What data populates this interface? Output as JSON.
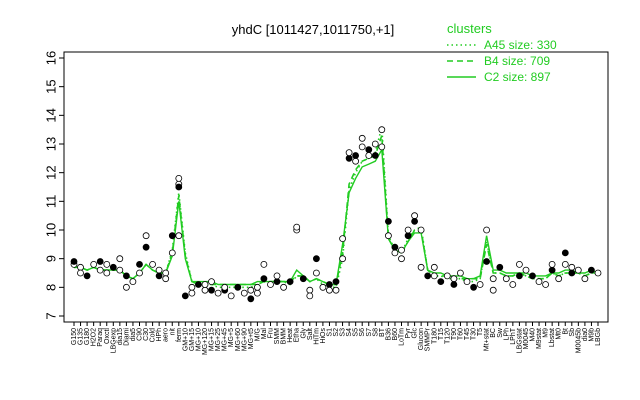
{
  "chart_data": {
    "type": "line",
    "title": "yhdC [1011427,1011750,+1]",
    "xlabel": "",
    "ylabel": "",
    "ylim": [
      7,
      16
    ],
    "yticks": [
      7,
      8,
      9,
      10,
      11,
      12,
      13,
      14,
      15,
      16
    ],
    "categories": [
      "G150",
      "G135",
      "G180",
      "H2O2",
      "Paraq",
      "Oxctl",
      "LBGexp",
      "dia15",
      "Diami",
      "dia5",
      "C90",
      "C30",
      "Cold",
      "HPh",
      "aero",
      "nit",
      "ferm",
      "GM+10",
      "GM+15",
      "MG+10",
      "MG+120",
      "MG+15",
      "MG+25",
      "MG+45",
      "MG+5",
      "MG+60",
      "MG+90",
      "MG+t5",
      "MG",
      "Mal",
      "Fru",
      "SMM",
      "BMM",
      "Heat",
      "Etha",
      "Gly",
      "Salt",
      "HiTm",
      "HiOs",
      "S1",
      "S2",
      "S3",
      "S4",
      "S5",
      "S6",
      "S7",
      "S8",
      "BT",
      "B36",
      "B60",
      "LoTm",
      "Pyr",
      "Glc",
      "Glucon",
      "SMMPr",
      "T180",
      "T15",
      "T120",
      "T90",
      "T60",
      "T45",
      "T30",
      "T5",
      "Mt+stat",
      "BC",
      "Sw",
      "LPh",
      "LPhT",
      "LBGstat",
      "M0045",
      "M40",
      "M9stat",
      "M9",
      "Lbstat",
      "Mt0",
      "Bt",
      "Sb",
      "M0045b",
      "dia0",
      "M9b",
      "LBGb"
    ],
    "shown_tick_labels": [
      "G150",
      "G135",
      "G180",
      "H2O2",
      "Paraq",
      "Oxctl",
      "LBGexp",
      "dia15",
      "Diami",
      "dia5",
      "C90",
      "C30",
      "Cold",
      "HPh",
      "aero",
      "nit",
      "ferm",
      "GM+10",
      "GM+15",
      "MG+10",
      "MG+120",
      "MG+15",
      "MG+25",
      "MG+45",
      "MG+5",
      "MG+60",
      "MG+90",
      "MG+t5",
      "M/G",
      "Mal",
      "Fru",
      "SMM",
      "BMM",
      "Heat",
      "Etha",
      "Gly",
      "Salt",
      "HiTm",
      "HiOs",
      "S1",
      "S2",
      "S3",
      "S4",
      "S5",
      "S6",
      "S7",
      "S8",
      "BT",
      "B36",
      "B60",
      "LoTm",
      "Pyr",
      "Glc",
      "Glucon",
      "SMMPr",
      "T180",
      "T15",
      "T120",
      "T90",
      "T60",
      "T45",
      "T30",
      "T5",
      "Mt+stat",
      "BC",
      "Sw",
      "LPh",
      "LPhT",
      "LBGstat",
      "M0045",
      "M40",
      "M9stat",
      "M9",
      "Lbstat",
      "Mt0",
      "Bt",
      "Sb",
      "M0045b",
      "dia0",
      "M9b",
      "LBGb"
    ],
    "series": [
      {
        "name": "A45 size: 330",
        "style": "dotted",
        "color": "#22cc22",
        "values": [
          8.7,
          8.7,
          8.6,
          8.7,
          8.6,
          8.6,
          8.6,
          8.6,
          8.4,
          8.3,
          8.5,
          8.8,
          8.6,
          8.5,
          8.5,
          9.3,
          11.3,
          9.2,
          8.2,
          8.1,
          8.1,
          8.1,
          8.0,
          8.0,
          8.0,
          8.0,
          8.0,
          8.0,
          8.1,
          8.2,
          8.1,
          8.2,
          8.2,
          8.1,
          8.4,
          8.4,
          8.2,
          8.3,
          8.1,
          8.0,
          8.0,
          9.0,
          11.4,
          12.0,
          12.4,
          12.5,
          12.7,
          13.6,
          9.8,
          9.3,
          9.2,
          9.7,
          10.0,
          10.1,
          8.6,
          8.4,
          8.4,
          8.3,
          8.3,
          8.3,
          8.2,
          8.2,
          8.3,
          9.6,
          8.5,
          8.5,
          8.4,
          8.4,
          8.5,
          8.4,
          8.3,
          8.3,
          8.3,
          8.5,
          8.4,
          8.5,
          8.5,
          8.5,
          8.4,
          8.5,
          8.5
        ]
      },
      {
        "name": "B4 size: 709",
        "style": "dashed",
        "color": "#22cc22",
        "values": [
          8.7,
          8.7,
          8.6,
          8.7,
          8.6,
          8.6,
          8.6,
          8.6,
          8.4,
          8.3,
          8.5,
          8.8,
          8.6,
          8.5,
          8.5,
          9.2,
          11.2,
          9.1,
          8.2,
          8.1,
          8.1,
          8.1,
          8.1,
          8.1,
          8.1,
          8.1,
          8.1,
          8.1,
          8.1,
          8.2,
          8.2,
          8.2,
          8.2,
          8.2,
          8.4,
          8.4,
          8.2,
          8.3,
          8.2,
          8.1,
          8.1,
          9.2,
          11.6,
          12.1,
          12.4,
          12.5,
          12.6,
          13.3,
          9.7,
          9.3,
          9.2,
          9.6,
          10.0,
          10.0,
          8.6,
          8.4,
          8.4,
          8.4,
          8.3,
          8.3,
          8.3,
          8.3,
          8.3,
          9.5,
          8.5,
          8.5,
          8.4,
          8.4,
          8.5,
          8.4,
          8.3,
          8.3,
          8.3,
          8.5,
          8.4,
          8.5,
          8.5,
          8.5,
          8.4,
          8.5,
          8.5
        ]
      },
      {
        "name": "C2 size: 897",
        "style": "solid",
        "color": "#22cc22",
        "values": [
          8.7,
          8.7,
          8.6,
          8.7,
          8.6,
          8.6,
          8.6,
          8.6,
          8.4,
          8.3,
          8.5,
          8.8,
          8.6,
          8.5,
          8.5,
          9.1,
          11.0,
          9.0,
          8.2,
          8.2,
          8.2,
          8.2,
          8.1,
          8.1,
          8.1,
          8.1,
          8.1,
          8.1,
          8.2,
          8.2,
          8.2,
          8.2,
          8.2,
          8.2,
          8.6,
          8.4,
          8.2,
          8.3,
          8.2,
          8.1,
          8.1,
          9.5,
          11.3,
          11.8,
          12.2,
          12.3,
          12.4,
          12.8,
          9.7,
          9.3,
          9.2,
          9.6,
          9.9,
          9.9,
          8.6,
          8.5,
          8.5,
          8.4,
          8.4,
          8.4,
          8.3,
          8.3,
          8.4,
          9.8,
          8.6,
          8.6,
          8.5,
          8.5,
          8.5,
          8.5,
          8.4,
          8.4,
          8.4,
          8.5,
          8.5,
          8.6,
          8.6,
          8.5,
          8.5,
          8.6,
          8.5
        ]
      }
    ],
    "points": [
      {
        "i": 0,
        "y": 8.8
      },
      {
        "i": 0,
        "y": 8.9
      },
      {
        "i": 1,
        "y": 8.7
      },
      {
        "i": 1,
        "y": 8.5
      },
      {
        "i": 2,
        "y": 8.4
      },
      {
        "i": 3,
        "y": 8.8
      },
      {
        "i": 4,
        "y": 8.6
      },
      {
        "i": 4,
        "y": 8.9
      },
      {
        "i": 5,
        "y": 8.8
      },
      {
        "i": 5,
        "y": 8.5
      },
      {
        "i": 6,
        "y": 8.7
      },
      {
        "i": 7,
        "y": 9.0
      },
      {
        "i": 7,
        "y": 8.6
      },
      {
        "i": 8,
        "y": 8.4
      },
      {
        "i": 8,
        "y": 8.0
      },
      {
        "i": 9,
        "y": 8.2
      },
      {
        "i": 10,
        "y": 8.8
      },
      {
        "i": 10,
        "y": 8.5
      },
      {
        "i": 11,
        "y": 9.8
      },
      {
        "i": 11,
        "y": 9.4
      },
      {
        "i": 12,
        "y": 8.8
      },
      {
        "i": 13,
        "y": 8.6
      },
      {
        "i": 13,
        "y": 8.4
      },
      {
        "i": 14,
        "y": 8.5
      },
      {
        "i": 14,
        "y": 8.3
      },
      {
        "i": 15,
        "y": 9.8
      },
      {
        "i": 15,
        "y": 9.2
      },
      {
        "i": 16,
        "y": 11.6
      },
      {
        "i": 16,
        "y": 11.5
      },
      {
        "i": 16,
        "y": 11.8
      },
      {
        "i": 16,
        "y": 9.8
      },
      {
        "i": 17,
        "y": 7.7
      },
      {
        "i": 18,
        "y": 8.0
      },
      {
        "i": 18,
        "y": 7.8
      },
      {
        "i": 19,
        "y": 8.1
      },
      {
        "i": 20,
        "y": 7.9
      },
      {
        "i": 20,
        "y": 8.1
      },
      {
        "i": 21,
        "y": 7.9
      },
      {
        "i": 21,
        "y": 8.2
      },
      {
        "i": 22,
        "y": 7.8
      },
      {
        "i": 23,
        "y": 7.9
      },
      {
        "i": 23,
        "y": 8.0
      },
      {
        "i": 24,
        "y": 7.7
      },
      {
        "i": 25,
        "y": 8.0
      },
      {
        "i": 26,
        "y": 7.8
      },
      {
        "i": 27,
        "y": 7.9
      },
      {
        "i": 27,
        "y": 7.6
      },
      {
        "i": 28,
        "y": 7.8
      },
      {
        "i": 28,
        "y": 8.0
      },
      {
        "i": 29,
        "y": 8.3
      },
      {
        "i": 29,
        "y": 8.8
      },
      {
        "i": 30,
        "y": 8.1
      },
      {
        "i": 31,
        "y": 8.2
      },
      {
        "i": 31,
        "y": 8.4
      },
      {
        "i": 32,
        "y": 8.0
      },
      {
        "i": 33,
        "y": 8.2
      },
      {
        "i": 34,
        "y": 10.0
      },
      {
        "i": 34,
        "y": 10.1
      },
      {
        "i": 35,
        "y": 8.3
      },
      {
        "i": 36,
        "y": 7.9
      },
      {
        "i": 36,
        "y": 7.7
      },
      {
        "i": 37,
        "y": 9.0
      },
      {
        "i": 37,
        "y": 8.5
      },
      {
        "i": 38,
        "y": 8.0
      },
      {
        "i": 39,
        "y": 8.1
      },
      {
        "i": 39,
        "y": 7.9
      },
      {
        "i": 40,
        "y": 7.9
      },
      {
        "i": 40,
        "y": 8.2
      },
      {
        "i": 41,
        "y": 9.7
      },
      {
        "i": 41,
        "y": 9.0
      },
      {
        "i": 42,
        "y": 12.5
      },
      {
        "i": 42,
        "y": 12.7
      },
      {
        "i": 43,
        "y": 12.4
      },
      {
        "i": 43,
        "y": 12.6
      },
      {
        "i": 44,
        "y": 13.2
      },
      {
        "i": 44,
        "y": 12.9
      },
      {
        "i": 45,
        "y": 12.8
      },
      {
        "i": 45,
        "y": 12.6
      },
      {
        "i": 46,
        "y": 13.0
      },
      {
        "i": 46,
        "y": 12.6
      },
      {
        "i": 47,
        "y": 13.5
      },
      {
        "i": 47,
        "y": 12.9
      },
      {
        "i": 48,
        "y": 10.3
      },
      {
        "i": 48,
        "y": 9.8
      },
      {
        "i": 49,
        "y": 9.2
      },
      {
        "i": 49,
        "y": 9.4
      },
      {
        "i": 50,
        "y": 9.3
      },
      {
        "i": 50,
        "y": 9.0
      },
      {
        "i": 51,
        "y": 9.8
      },
      {
        "i": 51,
        "y": 10.0
      },
      {
        "i": 52,
        "y": 10.5
      },
      {
        "i": 52,
        "y": 10.3
      },
      {
        "i": 53,
        "y": 10.0
      },
      {
        "i": 53,
        "y": 8.7
      },
      {
        "i": 54,
        "y": 8.4
      },
      {
        "i": 55,
        "y": 8.7
      },
      {
        "i": 55,
        "y": 8.4
      },
      {
        "i": 56,
        "y": 8.2
      },
      {
        "i": 57,
        "y": 8.4
      },
      {
        "i": 58,
        "y": 8.3
      },
      {
        "i": 58,
        "y": 8.1
      },
      {
        "i": 59,
        "y": 8.5
      },
      {
        "i": 60,
        "y": 8.2
      },
      {
        "i": 61,
        "y": 8.0
      },
      {
        "i": 62,
        "y": 8.1
      },
      {
        "i": 63,
        "y": 10.0
      },
      {
        "i": 63,
        "y": 8.9
      },
      {
        "i": 64,
        "y": 7.9
      },
      {
        "i": 64,
        "y": 8.3
      },
      {
        "i": 65,
        "y": 8.7
      },
      {
        "i": 66,
        "y": 8.3
      },
      {
        "i": 67,
        "y": 8.1
      },
      {
        "i": 68,
        "y": 8.4
      },
      {
        "i": 68,
        "y": 8.8
      },
      {
        "i": 69,
        "y": 8.6
      },
      {
        "i": 70,
        "y": 8.4
      },
      {
        "i": 71,
        "y": 8.2
      },
      {
        "i": 72,
        "y": 8.1
      },
      {
        "i": 73,
        "y": 8.6
      },
      {
        "i": 73,
        "y": 8.8
      },
      {
        "i": 74,
        "y": 8.3
      },
      {
        "i": 75,
        "y": 9.2
      },
      {
        "i": 75,
        "y": 8.8
      },
      {
        "i": 76,
        "y": 8.7
      },
      {
        "i": 76,
        "y": 8.5
      },
      {
        "i": 77,
        "y": 8.6
      },
      {
        "i": 78,
        "y": 8.3
      },
      {
        "i": 79,
        "y": 8.6
      },
      {
        "i": 80,
        "y": 8.5
      }
    ],
    "legend": {
      "title": "clusters",
      "placement": "top-right"
    },
    "grid": false
  }
}
